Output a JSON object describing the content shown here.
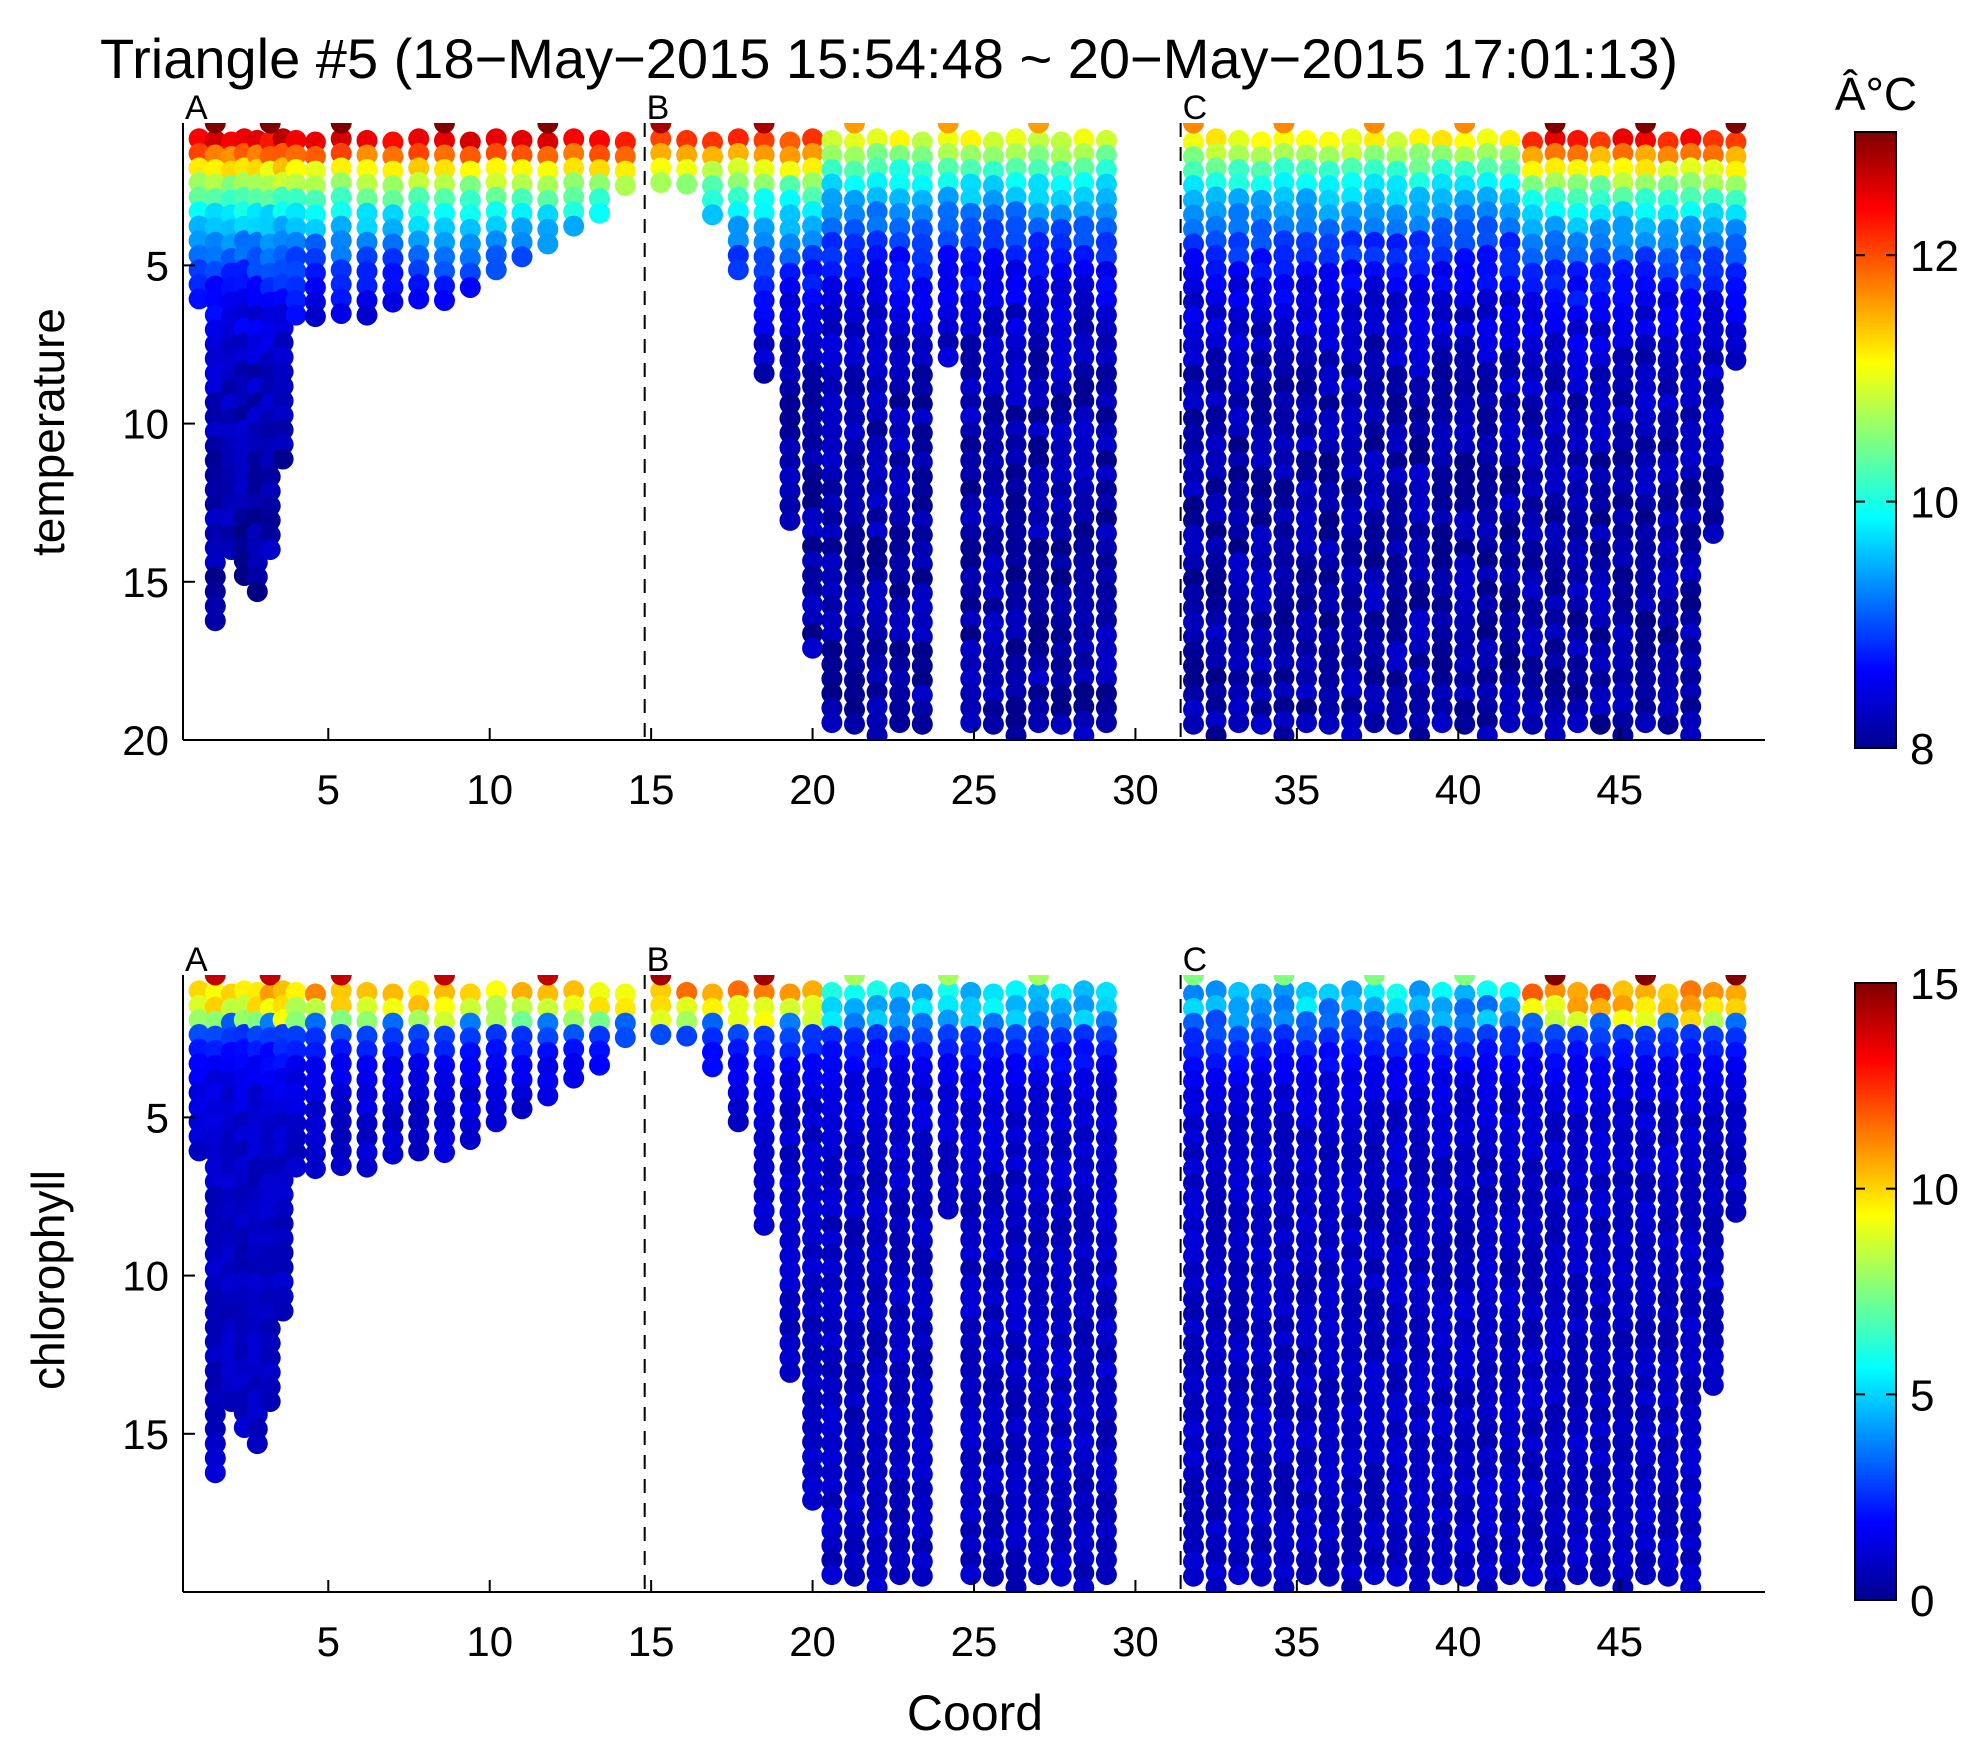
{
  "figure": {
    "title": "Triangle #5 (18−May−2015 15:54:48 ~ 20−May−2015 17:01:13)"
  },
  "chart_data": [
    {
      "type": "scatter",
      "panel": "temperature",
      "ylabel": "temperature",
      "xlabel": "",
      "xlim": [
        0.5,
        49.5
      ],
      "ylim": [
        20,
        0.5
      ],
      "y_reversed": true,
      "xticks": [
        5,
        10,
        15,
        20,
        25,
        30,
        35,
        40,
        45
      ],
      "yticks": [
        5,
        10,
        15,
        20
      ],
      "grid": false,
      "station_markers": [
        {
          "label": "A",
          "x": 0.5,
          "dashed_line": false
        },
        {
          "label": "B",
          "x": 14.8,
          "dashed_line": true
        },
        {
          "label": "C",
          "x": 31.4,
          "dashed_line": true
        }
      ],
      "colorbar": {
        "label": "Â°C",
        "min": 8,
        "max": 13,
        "ticks": [
          8,
          10,
          12
        ],
        "colormap": "jet"
      },
      "profiles": [
        {
          "x": 1.0,
          "max_depth": 6.2
        },
        {
          "x": 1.5,
          "max_depth": 16.4
        },
        {
          "x": 2.0,
          "max_depth": 14.0
        },
        {
          "x": 2.4,
          "max_depth": 15.0
        },
        {
          "x": 2.8,
          "max_depth": 15.4
        },
        {
          "x": 3.2,
          "max_depth": 14.2
        },
        {
          "x": 3.6,
          "max_depth": 11.5
        },
        {
          "x": 4.0,
          "max_depth": 7.0
        },
        {
          "x": 4.6,
          "max_depth": 6.8
        },
        {
          "x": 5.4,
          "max_depth": 6.7
        },
        {
          "x": 6.2,
          "max_depth": 6.6
        },
        {
          "x": 7.0,
          "max_depth": 6.6
        },
        {
          "x": 7.8,
          "max_depth": 6.5
        },
        {
          "x": 8.6,
          "max_depth": 6.2
        },
        {
          "x": 9.4,
          "max_depth": 5.9
        },
        {
          "x": 10.2,
          "max_depth": 5.5
        },
        {
          "x": 11.0,
          "max_depth": 5.0
        },
        {
          "x": 11.8,
          "max_depth": 4.5
        },
        {
          "x": 12.6,
          "max_depth": 4.0
        },
        {
          "x": 13.4,
          "max_depth": 3.4
        },
        {
          "x": 14.2,
          "max_depth": 2.7
        },
        {
          "x": 15.3,
          "max_depth": 2.4
        },
        {
          "x": 16.1,
          "max_depth": 2.8
        },
        {
          "x": 16.9,
          "max_depth": 3.7
        },
        {
          "x": 17.7,
          "max_depth": 5.5
        },
        {
          "x": 18.5,
          "max_depth": 8.5
        },
        {
          "x": 19.3,
          "max_depth": 13.5
        },
        {
          "x": 20.0,
          "max_depth": 17.5
        },
        {
          "x": 20.6,
          "max_depth": 19.9
        },
        {
          "x": 21.3,
          "max_depth": 19.9
        },
        {
          "x": 22.0,
          "max_depth": 19.9
        },
        {
          "x": 22.7,
          "max_depth": 19.9
        },
        {
          "x": 23.4,
          "max_depth": 19.9
        },
        {
          "x": 24.2,
          "max_depth": 8.0
        },
        {
          "x": 24.9,
          "max_depth": 19.9
        },
        {
          "x": 25.6,
          "max_depth": 19.9
        },
        {
          "x": 26.3,
          "max_depth": 19.9
        },
        {
          "x": 27.0,
          "max_depth": 19.9
        },
        {
          "x": 27.7,
          "max_depth": 19.9
        },
        {
          "x": 28.4,
          "max_depth": 19.9
        },
        {
          "x": 29.1,
          "max_depth": 19.9
        },
        {
          "x": 31.8,
          "max_depth": 19.9
        },
        {
          "x": 32.5,
          "max_depth": 19.9
        },
        {
          "x": 33.2,
          "max_depth": 19.9
        },
        {
          "x": 33.9,
          "max_depth": 19.9
        },
        {
          "x": 34.6,
          "max_depth": 19.9
        },
        {
          "x": 35.3,
          "max_depth": 19.9
        },
        {
          "x": 36.0,
          "max_depth": 19.9
        },
        {
          "x": 36.7,
          "max_depth": 19.9
        },
        {
          "x": 37.4,
          "max_depth": 19.9
        },
        {
          "x": 38.1,
          "max_depth": 19.9
        },
        {
          "x": 38.8,
          "max_depth": 19.9
        },
        {
          "x": 39.5,
          "max_depth": 19.9
        },
        {
          "x": 40.2,
          "max_depth": 19.9
        },
        {
          "x": 40.9,
          "max_depth": 19.9
        },
        {
          "x": 41.6,
          "max_depth": 19.9
        },
        {
          "x": 42.3,
          "max_depth": 19.9
        },
        {
          "x": 43.0,
          "max_depth": 19.9
        },
        {
          "x": 43.7,
          "max_depth": 19.9
        },
        {
          "x": 44.4,
          "max_depth": 19.9
        },
        {
          "x": 45.1,
          "max_depth": 19.9
        },
        {
          "x": 45.8,
          "max_depth": 19.9
        },
        {
          "x": 46.5,
          "max_depth": 19.9
        },
        {
          "x": 47.2,
          "max_depth": 19.9
        },
        {
          "x": 47.9,
          "max_depth": 13.5
        },
        {
          "x": 48.6,
          "max_depth": 8.0
        }
      ],
      "value_profile": {
        "surface_by_segment": [
          {
            "x_from": 0.5,
            "x_to": 15.0,
            "surface": 12.8
          },
          {
            "x_from": 15.0,
            "x_to": 20.5,
            "surface": 12.4
          },
          {
            "x_from": 20.5,
            "x_to": 31.5,
            "surface": 11.2
          },
          {
            "x_from": 31.5,
            "x_to": 42.0,
            "surface": 11.3
          },
          {
            "x_from": 42.0,
            "x_to": 49.5,
            "surface": 12.6
          }
        ],
        "thermocline_depth": 2.5,
        "deep_value": 8.2
      }
    },
    {
      "type": "scatter",
      "panel": "chlorophyll",
      "ylabel": "chlorophyll",
      "xlabel": "Coord",
      "xlim": [
        0.5,
        49.5
      ],
      "ylim": [
        20,
        0.5
      ],
      "y_reversed": true,
      "xticks": [
        5,
        10,
        15,
        20,
        25,
        30,
        35,
        40,
        45
      ],
      "yticks": [
        5,
        10,
        15
      ],
      "grid": false,
      "station_markers": [
        {
          "label": "A",
          "x": 0.5,
          "dashed_line": false
        },
        {
          "label": "B",
          "x": 14.8,
          "dashed_line": true
        },
        {
          "label": "C",
          "x": 31.4,
          "dashed_line": true
        }
      ],
      "colorbar": {
        "label": "",
        "min": 0,
        "max": 15,
        "ticks": [
          0,
          5,
          10,
          15
        ],
        "colormap": "jet"
      },
      "value_profile": {
        "surface_by_segment": [
          {
            "x_from": 0.5,
            "x_to": 15.0,
            "surface": 12.5
          },
          {
            "x_from": 15.0,
            "x_to": 20.5,
            "surface": 13.0
          },
          {
            "x_from": 20.5,
            "x_to": 31.5,
            "surface": 6.5
          },
          {
            "x_from": 31.5,
            "x_to": 42.0,
            "surface": 6.0
          },
          {
            "x_from": 42.0,
            "x_to": 49.5,
            "surface": 13.5
          }
        ],
        "mixed_depth": 2.0,
        "deep_value": 1.0
      }
    }
  ]
}
